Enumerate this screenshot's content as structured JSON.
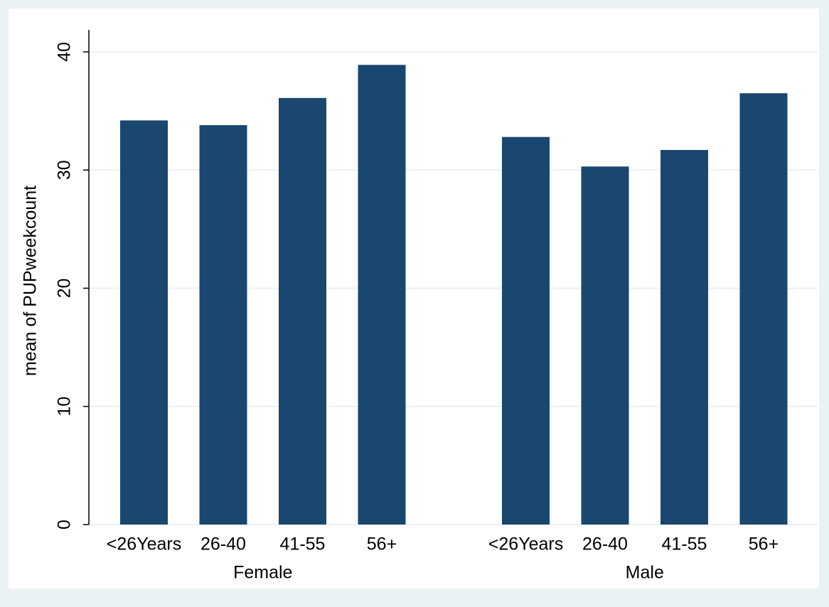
{
  "chart_data": {
    "type": "grouped-bar",
    "y_label": "mean of PUPweekcount",
    "color": "#1a476f",
    "groups": [
      {
        "name": "Female",
        "categories": [
          "<26Years",
          "26-40",
          "41-55",
          "56+"
        ],
        "values": [
          34.2,
          33.8,
          36.1,
          38.9
        ]
      },
      {
        "name": "Male",
        "categories": [
          "<26Years",
          "26-40",
          "41-55",
          "56+"
        ],
        "values": [
          32.8,
          30.3,
          31.7,
          36.5
        ]
      }
    ],
    "ylim": [
      0,
      40
    ],
    "yticks": [
      0,
      10,
      20,
      30,
      40
    ],
    "grid": true
  }
}
